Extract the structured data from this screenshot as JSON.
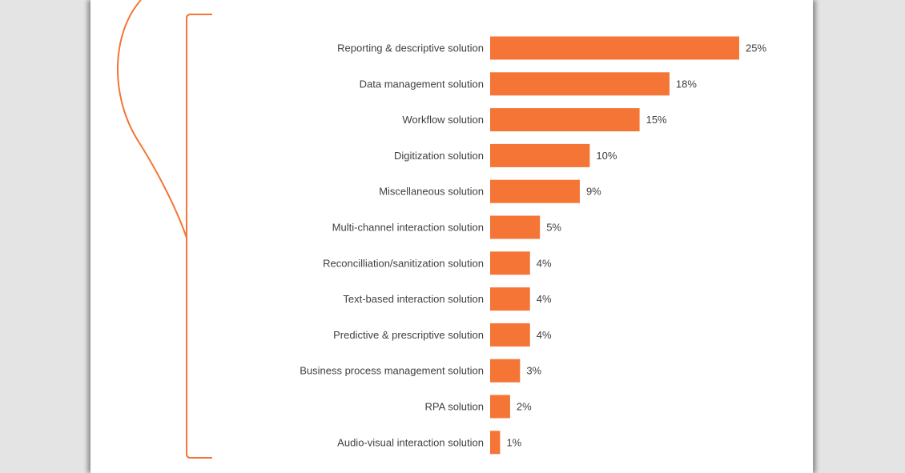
{
  "theme": {
    "accent": "#f47535",
    "text": "#404040",
    "page": "#ffffff",
    "backdrop": "#e4e4e4"
  },
  "chart_data": {
    "type": "bar",
    "orientation": "horizontal",
    "categories": [
      "Reporting & descriptive solution",
      "Data management solution",
      "Workflow solution",
      "Digitization solution",
      "Miscellaneous solution",
      "Multi-channel interaction solution",
      "Reconcilliation/sanitization solution",
      "Text-based interaction solution",
      "Predictive & prescriptive solution",
      "Business process management solution",
      "RPA solution",
      "Audio-visual interaction solution"
    ],
    "values": [
      25,
      18,
      15,
      10,
      9,
      5,
      4,
      4,
      4,
      3,
      2,
      1
    ],
    "value_labels": [
      "25%",
      "18%",
      "15%",
      "10%",
      "9%",
      "5%",
      "4%",
      "4%",
      "4%",
      "3%",
      "2%",
      "1%"
    ],
    "title": "",
    "xlabel": "",
    "ylabel": "",
    "xlim": [
      0,
      25
    ],
    "grid": false,
    "legend": "none",
    "bar_color": "#f47535"
  }
}
